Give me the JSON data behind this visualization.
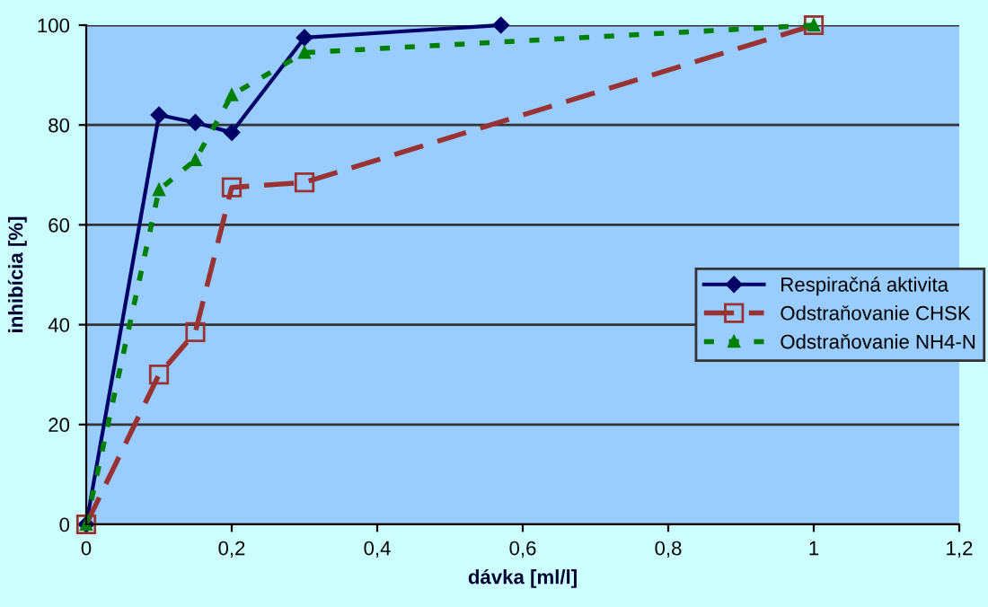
{
  "chart_data": {
    "type": "line",
    "xlabel": "dávka [ml/l]",
    "ylabel": "inhibícia [%]",
    "xlim": [
      0,
      1.2
    ],
    "xticks": [
      0,
      {
        "value": 0.2,
        "label": "0,2"
      },
      {
        "value": 0.4,
        "label": "0,4"
      },
      {
        "value": 0.6,
        "label": "0,6"
      },
      {
        "value": 0.8,
        "label": "0,8"
      },
      1,
      {
        "value": 1.2,
        "label": "1,2"
      }
    ],
    "ylim": [
      0,
      100
    ],
    "yticks": [
      0,
      20,
      40,
      60,
      80,
      100
    ],
    "grid": "y",
    "legend": "right",
    "series": [
      {
        "name": "Respiračná aktivita",
        "color": "#000066",
        "marker": "diamond",
        "line_style": "solid",
        "x": [
          0,
          0.1,
          0.15,
          0.2,
          0.3,
          0.57
        ],
        "values": [
          0,
          82,
          80.5,
          78.5,
          97.5,
          100
        ]
      },
      {
        "name": "Odstraňovanie CHSK",
        "color": "#993333",
        "marker": "square",
        "line_style": "dashed",
        "x": [
          0,
          0.1,
          0.15,
          0.2,
          0.3,
          1
        ],
        "values": [
          0,
          30,
          38.5,
          67.5,
          68.5,
          100
        ]
      },
      {
        "name": "Odstraňovanie NH4-N",
        "color": "#008000",
        "marker": "triangle",
        "line_style": "dotted",
        "x": [
          0,
          0.1,
          0.15,
          0.2,
          0.3,
          1
        ],
        "values": [
          0,
          67,
          73,
          86,
          94.5,
          100
        ]
      }
    ]
  }
}
